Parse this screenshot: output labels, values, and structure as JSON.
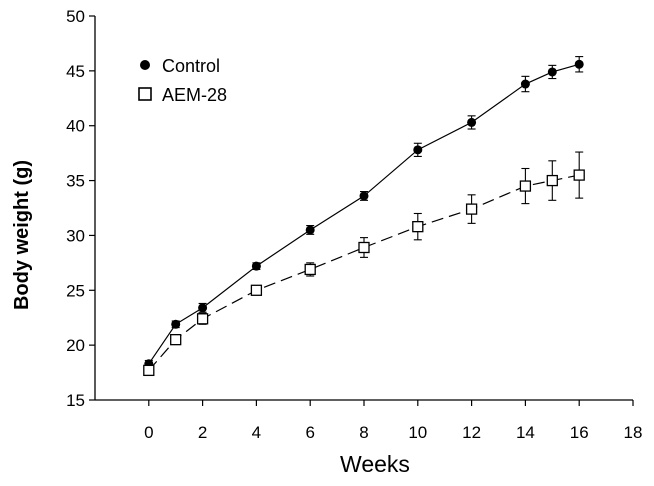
{
  "chart_data": {
    "type": "line",
    "title": "",
    "xlabel": "Weeks",
    "ylabel": "Body weight (g)",
    "xlim": [
      -2,
      18
    ],
    "ylim": [
      15,
      50
    ],
    "x_ticks": [
      0,
      2,
      4,
      6,
      8,
      10,
      12,
      14,
      16,
      18
    ],
    "y_ticks": [
      15,
      20,
      25,
      30,
      35,
      40,
      45,
      50
    ],
    "grid": false,
    "legend_position": "top-left",
    "series": [
      {
        "name": "Control",
        "marker": "filled-circle",
        "line_style": "solid",
        "color": "#000000",
        "x": [
          0,
          1,
          2,
          4,
          6,
          8,
          10,
          12,
          14,
          15,
          16
        ],
        "y": [
          18.3,
          21.9,
          23.4,
          27.2,
          30.5,
          33.6,
          37.8,
          40.3,
          43.8,
          44.9,
          45.6
        ],
        "error": [
          0.3,
          0.3,
          0.4,
          0.3,
          0.4,
          0.4,
          0.6,
          0.6,
          0.7,
          0.6,
          0.7
        ]
      },
      {
        "name": "AEM-28",
        "marker": "open-square",
        "line_style": "dashed",
        "color": "#000000",
        "x": [
          0,
          1,
          2,
          4,
          6,
          8,
          10,
          12,
          14,
          15,
          16
        ],
        "y": [
          17.7,
          20.5,
          22.4,
          25.0,
          26.9,
          28.9,
          30.8,
          32.4,
          34.5,
          35.0,
          35.5
        ],
        "error": [
          0.3,
          0.4,
          0.5,
          0.4,
          0.6,
          0.9,
          1.2,
          1.3,
          1.6,
          1.8,
          2.1
        ]
      }
    ]
  }
}
